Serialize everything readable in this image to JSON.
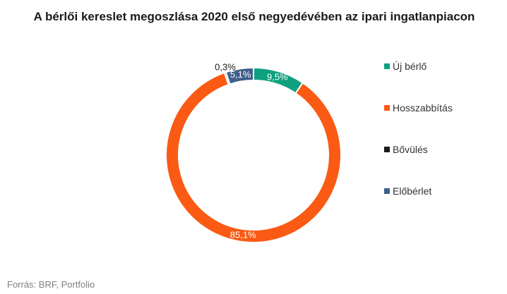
{
  "chart_data": {
    "type": "pie",
    "donut": true,
    "title": "A bérlői kereslet megoszlása 2020 első negyedévében az ipari ingatlanpiacon",
    "labels": [
      "Új bérlő",
      "Hosszabbítás",
      "Bővülés",
      "Előbérlet"
    ],
    "values": [
      9.5,
      85.1,
      0.3,
      5.1
    ],
    "value_labels": [
      "9,5%",
      "85,1%",
      "0,3%",
      "5,1%"
    ],
    "colors": [
      "#0fa07f",
      "#fa5a14",
      "#1a1a1a",
      "#3f5f8a"
    ],
    "unit": "%",
    "legend_position": "right"
  },
  "source": "Forrás: BRF, Portfolio"
}
